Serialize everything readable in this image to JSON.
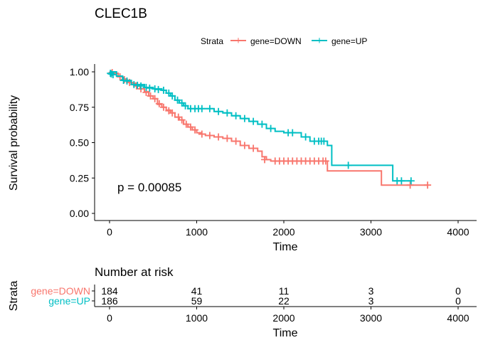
{
  "chart_data": [
    {
      "type": "line",
      "subtype": "kaplan-meier",
      "title": "CLEC1B",
      "xlabel": "Time",
      "ylabel": "Survival probability",
      "xlim": [
        0,
        4000
      ],
      "ylim": [
        0,
        1
      ],
      "x_ticks": [
        "0",
        "1000",
        "2000",
        "3000",
        "4000"
      ],
      "y_ticks": [
        "0.00",
        "0.25",
        "0.50",
        "0.75",
        "1.00"
      ],
      "legend": {
        "title": "Strata",
        "position": "top"
      },
      "annotation": "p = 0.00085",
      "grid": false,
      "series": [
        {
          "name": "gene=DOWN",
          "color": "#F8766D",
          "steps": [
            [
              0,
              1.0
            ],
            [
              50,
              0.99
            ],
            [
              100,
              0.97
            ],
            [
              150,
              0.95
            ],
            [
              200,
              0.93
            ],
            [
              250,
              0.92
            ],
            [
              300,
              0.9
            ],
            [
              350,
              0.88
            ],
            [
              400,
              0.86
            ],
            [
              450,
              0.83
            ],
            [
              500,
              0.81
            ],
            [
              550,
              0.77
            ],
            [
              600,
              0.75
            ],
            [
              650,
              0.73
            ],
            [
              700,
              0.71
            ],
            [
              750,
              0.68
            ],
            [
              800,
              0.66
            ],
            [
              850,
              0.63
            ],
            [
              900,
              0.61
            ],
            [
              950,
              0.59
            ],
            [
              1000,
              0.57
            ],
            [
              1050,
              0.56
            ],
            [
              1100,
              0.55
            ],
            [
              1200,
              0.54
            ],
            [
              1300,
              0.53
            ],
            [
              1400,
              0.51
            ],
            [
              1500,
              0.48
            ],
            [
              1600,
              0.46
            ],
            [
              1700,
              0.44
            ],
            [
              1750,
              0.4
            ],
            [
              1800,
              0.38
            ],
            [
              1850,
              0.37
            ],
            [
              2500,
              0.3
            ],
            [
              3120,
              0.2
            ],
            [
              3650,
              0.2
            ]
          ],
          "censored": [
            [
              30,
              0.995
            ],
            [
              120,
              0.965
            ],
            [
              170,
              0.945
            ],
            [
              230,
              0.925
            ],
            [
              310,
              0.9
            ],
            [
              360,
              0.88
            ],
            [
              420,
              0.855
            ],
            [
              470,
              0.83
            ],
            [
              520,
              0.81
            ],
            [
              570,
              0.775
            ],
            [
              620,
              0.75
            ],
            [
              680,
              0.725
            ],
            [
              720,
              0.71
            ],
            [
              790,
              0.68
            ],
            [
              830,
              0.66
            ],
            [
              880,
              0.63
            ],
            [
              930,
              0.61
            ],
            [
              980,
              0.59
            ],
            [
              1060,
              0.56
            ],
            [
              1150,
              0.55
            ],
            [
              1250,
              0.54
            ],
            [
              1350,
              0.53
            ],
            [
              1450,
              0.51
            ],
            [
              1550,
              0.48
            ],
            [
              1650,
              0.46
            ],
            [
              1780,
              0.38
            ],
            [
              1900,
              0.37
            ],
            [
              1950,
              0.37
            ],
            [
              2000,
              0.37
            ],
            [
              2050,
              0.37
            ],
            [
              2100,
              0.37
            ],
            [
              2150,
              0.37
            ],
            [
              2200,
              0.37
            ],
            [
              2250,
              0.37
            ],
            [
              2300,
              0.37
            ],
            [
              2350,
              0.37
            ],
            [
              2400,
              0.37
            ],
            [
              2450,
              0.37
            ],
            [
              2480,
              0.37
            ],
            [
              3450,
              0.2
            ],
            [
              3650,
              0.2
            ]
          ]
        },
        {
          "name": "gene=UP",
          "color": "#00BFC4",
          "steps": [
            [
              0,
              1.0
            ],
            [
              80,
              0.97
            ],
            [
              150,
              0.94
            ],
            [
              250,
              0.91
            ],
            [
              400,
              0.89
            ],
            [
              500,
              0.88
            ],
            [
              600,
              0.87
            ],
            [
              650,
              0.85
            ],
            [
              700,
              0.83
            ],
            [
              750,
              0.8
            ],
            [
              800,
              0.78
            ],
            [
              850,
              0.76
            ],
            [
              900,
              0.74
            ],
            [
              1100,
              0.74
            ],
            [
              1200,
              0.72
            ],
            [
              1300,
              0.71
            ],
            [
              1400,
              0.69
            ],
            [
              1500,
              0.67
            ],
            [
              1600,
              0.65
            ],
            [
              1700,
              0.63
            ],
            [
              1800,
              0.6
            ],
            [
              1900,
              0.58
            ],
            [
              2000,
              0.57
            ],
            [
              2200,
              0.54
            ],
            [
              2300,
              0.51
            ],
            [
              2500,
              0.48
            ],
            [
              2550,
              0.34
            ],
            [
              3250,
              0.23
            ],
            [
              3460,
              0.23
            ]
          ],
          "censored": [
            [
              10,
              0.99
            ],
            [
              20,
              0.985
            ],
            [
              40,
              0.98
            ],
            [
              160,
              0.94
            ],
            [
              200,
              0.935
            ],
            [
              280,
              0.91
            ],
            [
              320,
              0.905
            ],
            [
              360,
              0.9
            ],
            [
              420,
              0.89
            ],
            [
              460,
              0.885
            ],
            [
              520,
              0.88
            ],
            [
              560,
              0.875
            ],
            [
              620,
              0.87
            ],
            [
              680,
              0.85
            ],
            [
              720,
              0.83
            ],
            [
              780,
              0.8
            ],
            [
              830,
              0.78
            ],
            [
              870,
              0.76
            ],
            [
              930,
              0.74
            ],
            [
              980,
              0.74
            ],
            [
              1020,
              0.74
            ],
            [
              1060,
              0.74
            ],
            [
              1150,
              0.74
            ],
            [
              1250,
              0.72
            ],
            [
              1350,
              0.71
            ],
            [
              1450,
              0.69
            ],
            [
              1550,
              0.67
            ],
            [
              1650,
              0.65
            ],
            [
              1750,
              0.63
            ],
            [
              1850,
              0.6
            ],
            [
              2050,
              0.57
            ],
            [
              2100,
              0.57
            ],
            [
              2250,
              0.54
            ],
            [
              2350,
              0.51
            ],
            [
              2400,
              0.51
            ],
            [
              2430,
              0.51
            ],
            [
              2460,
              0.51
            ],
            [
              2740,
              0.34
            ],
            [
              3300,
              0.23
            ],
            [
              3350,
              0.23
            ],
            [
              3460,
              0.23
            ]
          ]
        }
      ]
    },
    {
      "type": "table",
      "title": "Number at risk",
      "ylabel": "Strata",
      "xlabel": "Time",
      "x_ticks": [
        "0",
        "1000",
        "2000",
        "3000",
        "4000"
      ],
      "times": [
        0,
        1000,
        2000,
        3000,
        4000
      ],
      "rows": [
        {
          "name": "gene=DOWN",
          "color": "#F8766D",
          "values": [
            "184",
            "41",
            "11",
            "3",
            "0"
          ]
        },
        {
          "name": "gene=UP",
          "color": "#00BFC4",
          "values": [
            "186",
            "59",
            "22",
            "3",
            "0"
          ]
        }
      ]
    }
  ]
}
